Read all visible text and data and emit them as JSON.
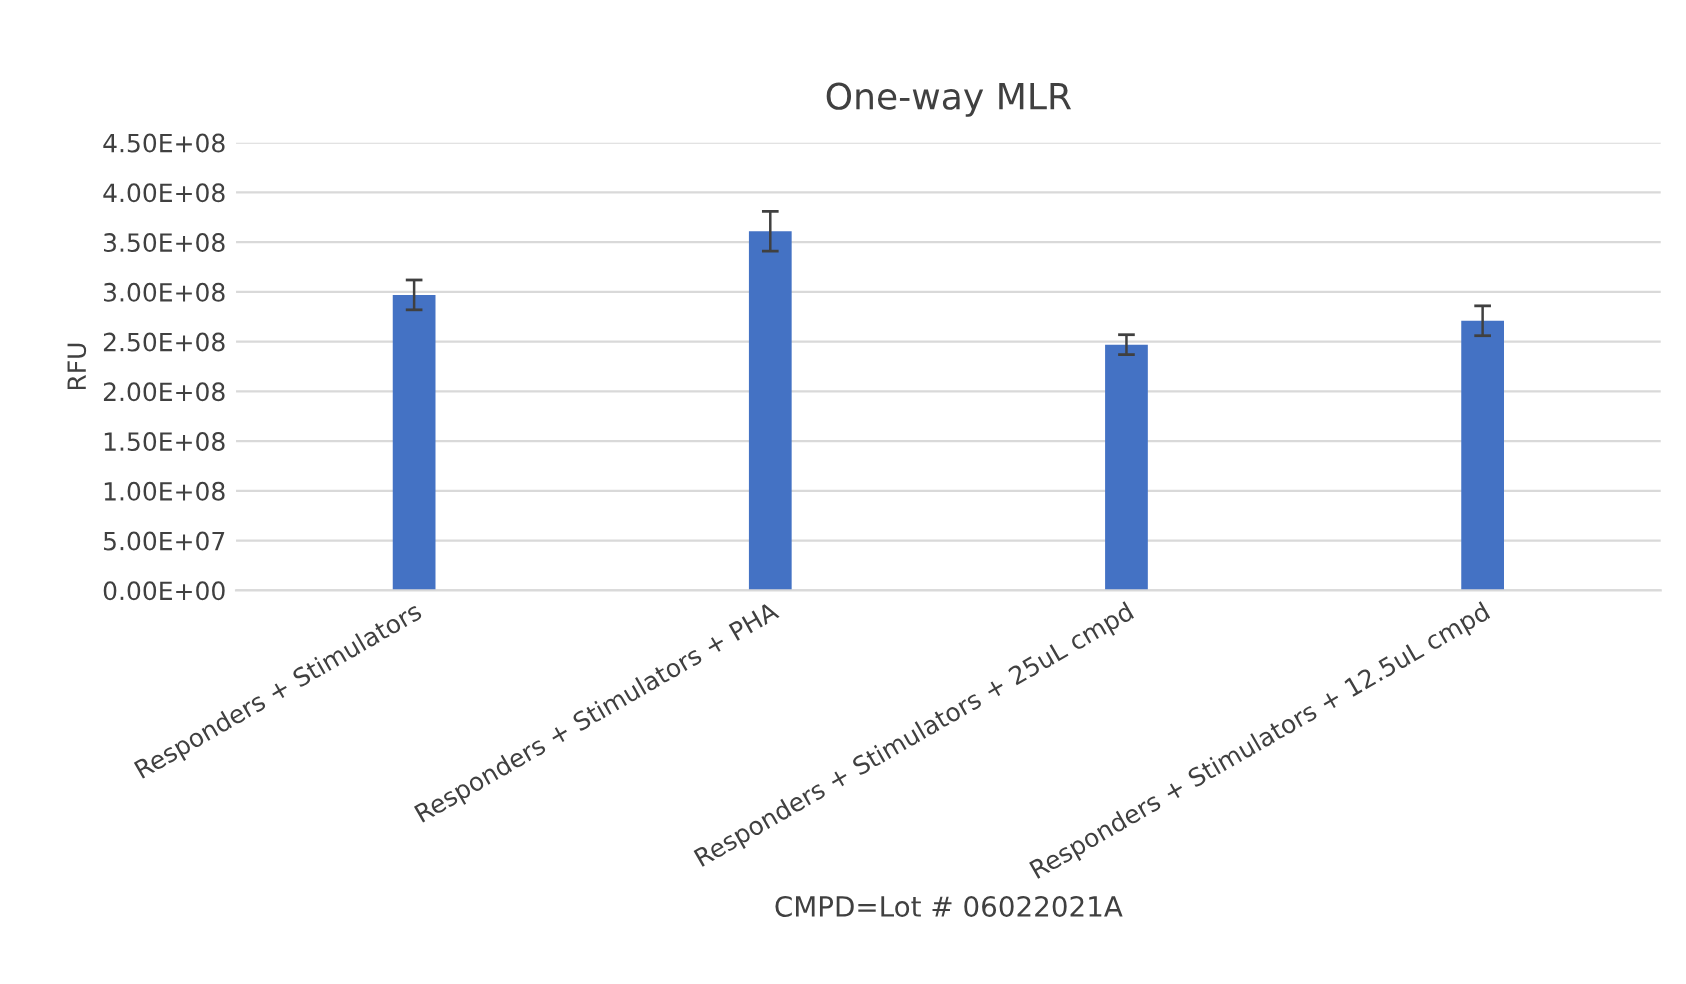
{
  "chart_data": {
    "type": "bar",
    "title": "One-way MLR",
    "xlabel": "CMPD=Lot # 06022021A",
    "ylabel": "RFU",
    "categories": [
      "Responders + Stimulators",
      "Responders + Stimulators + PHA",
      "Responders + Stimulators + 25uL cmpd",
      "Responders + Stimulators + 12.5uL cmpd"
    ],
    "series": [
      {
        "color": "#4472c4",
        "values": [
          297000000,
          361000000,
          247000000,
          271000000
        ],
        "errors": [
          15000000,
          20000000,
          10000000,
          15000000
        ]
      }
    ],
    "ylim": [
      0,
      450000000
    ],
    "yticks": [
      {
        "value": 0,
        "label": "0.00E+00"
      },
      {
        "value": 50000000,
        "label": "5.00E+07"
      },
      {
        "value": 100000000,
        "label": "1.00E+08"
      },
      {
        "value": 150000000,
        "label": "1.50E+08"
      },
      {
        "value": 200000000,
        "label": "2.00E+08"
      },
      {
        "value": 250000000,
        "label": "2.50E+08"
      },
      {
        "value": 300000000,
        "label": "3.00E+08"
      },
      {
        "value": 350000000,
        "label": "3.50E+08"
      },
      {
        "value": 400000000,
        "label": "4.00E+08"
      },
      {
        "value": 450000000,
        "label": "4.50E+08"
      }
    ],
    "grid": "y",
    "legend": false
  }
}
